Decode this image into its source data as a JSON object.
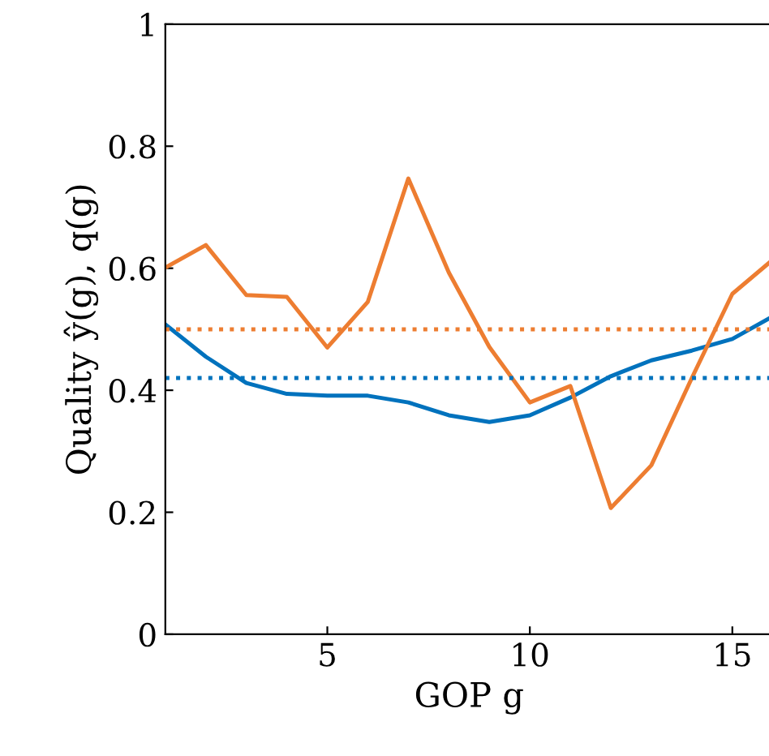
{
  "chart_data": {
    "type": "line",
    "xlabel": "GOP g",
    "ylabel": "Quality ŷ(g), q(g)",
    "x": [
      1,
      2,
      3,
      4,
      5,
      6,
      7,
      8,
      9,
      10,
      11,
      12,
      13,
      14,
      15,
      16
    ],
    "series": [
      {
        "color": "#0072bd",
        "values": [
          0.508,
          0.455,
          0.412,
          0.394,
          0.391,
          0.391,
          0.38,
          0.359,
          0.348,
          0.359,
          0.388,
          0.423,
          0.449,
          0.465,
          0.484,
          0.521
        ]
      },
      {
        "color": "#ed7d31",
        "values": [
          0.601,
          0.638,
          0.556,
          0.553,
          0.47,
          0.545,
          0.747,
          0.593,
          0.471,
          0.38,
          0.407,
          0.207,
          0.277,
          0.42,
          0.558,
          0.614
        ]
      }
    ],
    "ref_lines": [
      {
        "axis": "y",
        "value": 0.5,
        "color": "#ed7d31",
        "line_style": "dotted"
      },
      {
        "axis": "y",
        "value": 0.42,
        "color": "#0072bd",
        "line_style": "dotted"
      }
    ],
    "xlim": [
      1,
      16
    ],
    "ylim": [
      0,
      1
    ],
    "xticks": [
      5,
      10,
      15
    ],
    "yticks": [
      0,
      0.2,
      0.4,
      0.6,
      0.8,
      1
    ],
    "grid": false,
    "legend": false,
    "marker": "none",
    "line_style": "solid"
  }
}
